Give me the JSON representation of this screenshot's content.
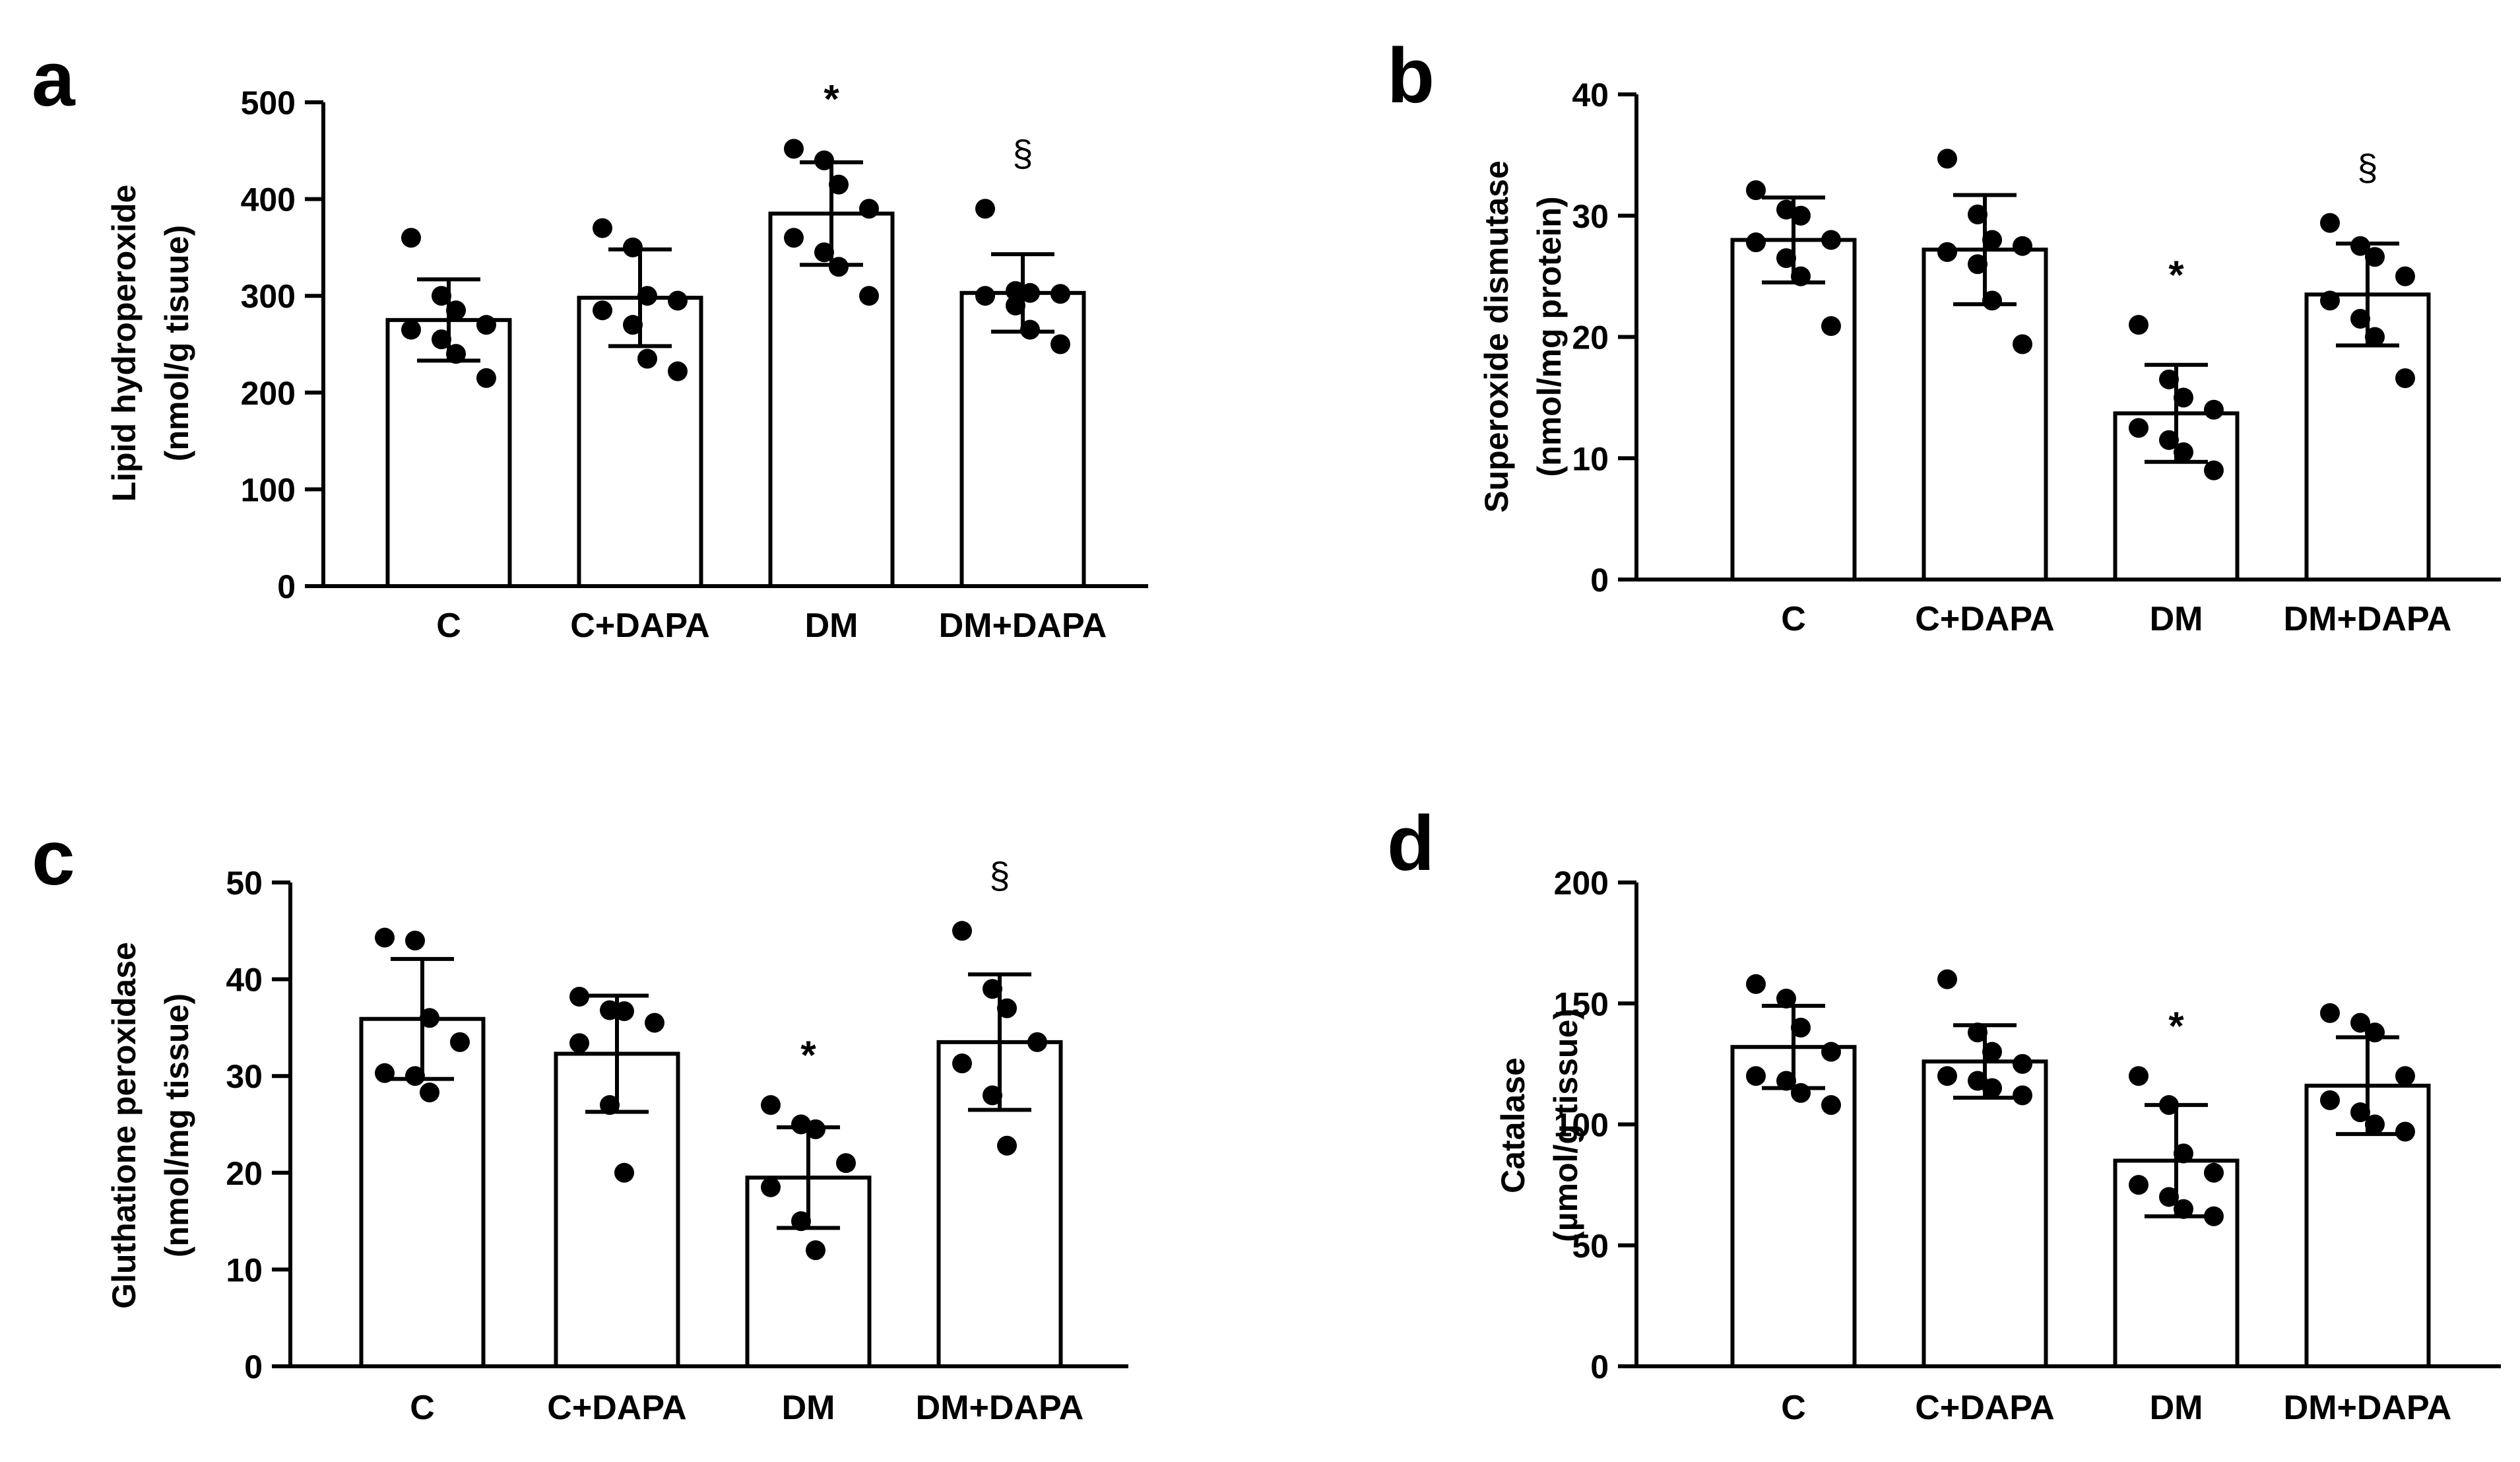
{
  "chart_data": [
    {
      "panel": "a",
      "type": "bar",
      "ylabel": [
        "Lipid hydroperoxide",
        "(nmol/g tisuue)"
      ],
      "ylim": [
        0,
        500
      ],
      "yticks": [
        0,
        100,
        200,
        300,
        400,
        500
      ],
      "ytick_labels": [
        "0",
        "100",
        "200",
        "300",
        "400",
        "500"
      ],
      "categories": [
        "C",
        "C+DAPA",
        "DM",
        "DM+DAPA"
      ],
      "values": [
        275,
        298,
        385,
        303
      ],
      "sd": [
        42,
        50,
        53,
        40
      ],
      "points": [
        [
          360,
          300,
          285,
          270,
          265,
          255,
          240,
          215
        ],
        [
          370,
          350,
          300,
          295,
          285,
          270,
          235,
          222
        ],
        [
          452,
          440,
          415,
          390,
          360,
          345,
          330,
          300
        ],
        [
          390,
          305,
          303,
          302,
          300,
          290,
          265,
          250
        ]
      ],
      "annotations": [
        "",
        "",
        "*",
        "§"
      ]
    },
    {
      "panel": "b",
      "type": "bar",
      "ylabel": [
        "Superoxide dismutase",
        "(nmol/mg protein)"
      ],
      "ylim": [
        0,
        40
      ],
      "yticks": [
        0,
        10,
        20,
        30,
        40
      ],
      "ytick_labels": [
        "0",
        "10",
        "20",
        "30",
        "40"
      ],
      "categories": [
        "C",
        "C+DAPA",
        "DM",
        "DM+DAPA"
      ],
      "values": [
        28,
        27.2,
        13.7,
        23.5
      ],
      "sd": [
        3.5,
        4.5,
        4,
        4.2
      ],
      "points": [
        [
          32.1,
          30.5,
          30,
          28,
          27.8,
          26.5,
          25,
          20.9
        ],
        [
          34.7,
          30.1,
          28,
          27.5,
          27,
          26,
          23,
          19.4
        ],
        [
          21,
          16.5,
          15,
          14,
          12.5,
          11.5,
          10.5,
          9
        ],
        [
          29.4,
          27.5,
          26.6,
          25,
          23,
          21.5,
          20,
          16.6
        ]
      ],
      "annotations": [
        "",
        "",
        "*",
        "§"
      ]
    },
    {
      "panel": "c",
      "type": "bar",
      "ylabel": [
        "Gluthatione peroxidase",
        "(nmol/mg tissue)"
      ],
      "ylim": [
        0,
        50
      ],
      "yticks": [
        0,
        10,
        20,
        30,
        40,
        50
      ],
      "ytick_labels": [
        "0",
        "10",
        "20",
        "30",
        "40",
        "50"
      ],
      "categories": [
        "C",
        "C+DAPA",
        "DM",
        "DM+DAPA"
      ],
      "values": [
        35.9,
        32.3,
        19.5,
        33.5
      ],
      "sd": [
        6.2,
        6,
        5.2,
        7
      ],
      "points": [
        [
          44.3,
          44,
          36,
          33.5,
          30.3,
          30,
          28.3
        ],
        [
          38.2,
          36.8,
          36.7,
          35.5,
          33.4,
          27,
          20
        ],
        [
          27,
          25,
          24.5,
          21,
          18.5,
          15,
          12
        ],
        [
          45,
          39,
          37,
          33.5,
          31.3,
          28,
          22.8
        ]
      ],
      "annotations": [
        "",
        "",
        "*",
        "§"
      ]
    },
    {
      "panel": "d",
      "type": "bar",
      "ylabel": [
        "Catalase",
        "(µmol/g tissue)"
      ],
      "ylim": [
        0,
        200
      ],
      "yticks": [
        0,
        50,
        100,
        150,
        200
      ],
      "ytick_labels": [
        "0",
        "50",
        "100",
        "150",
        "200"
      ],
      "categories": [
        "C",
        "C+DAPA",
        "DM",
        "DM+DAPA"
      ],
      "values": [
        132,
        126,
        85,
        116
      ],
      "sd": [
        17,
        15,
        23,
        20
      ],
      "points": [
        [
          158,
          152,
          140,
          130,
          120,
          118,
          113,
          108
        ],
        [
          160,
          138,
          130,
          125,
          120,
          118,
          115,
          112
        ],
        [
          120,
          108,
          88,
          80,
          75,
          70,
          65,
          62
        ],
        [
          146,
          142,
          138,
          120,
          110,
          105,
          100,
          97
        ]
      ],
      "annotations": [
        "",
        "",
        "*",
        ""
      ]
    }
  ]
}
